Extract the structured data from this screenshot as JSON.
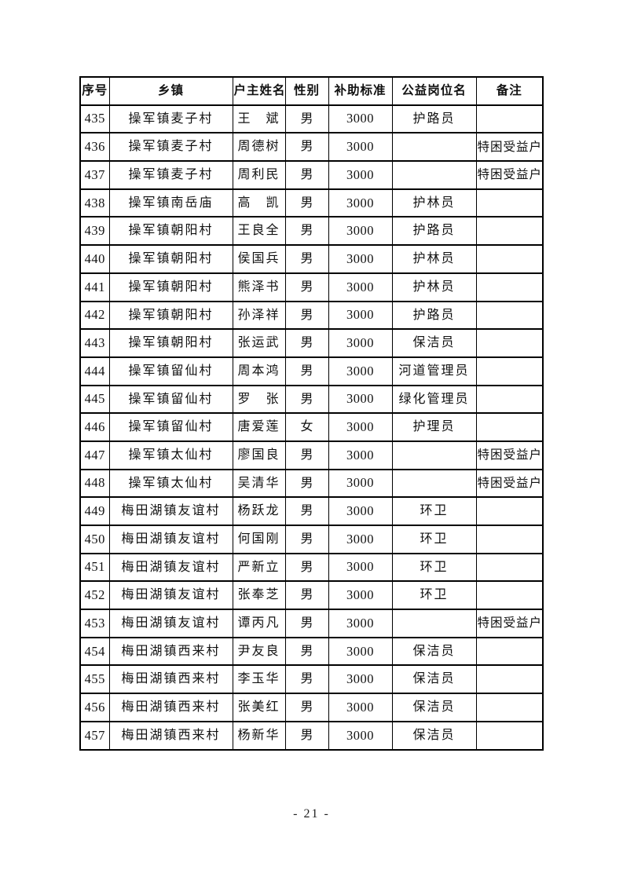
{
  "footer": {
    "page_label": "- 21 -"
  },
  "table": {
    "headers": [
      "序号",
      "乡镇",
      "户主姓名",
      "性别",
      "补助标准",
      "公益岗位名",
      "备注"
    ],
    "rows": [
      {
        "seq": "435",
        "township": "操军镇麦子村",
        "name": "王　斌",
        "gender": "男",
        "amount": "3000",
        "position": "护路员",
        "remark": ""
      },
      {
        "seq": "436",
        "township": "操军镇麦子村",
        "name": "周德树",
        "gender": "男",
        "amount": "3000",
        "position": "",
        "remark": "特困受益户"
      },
      {
        "seq": "437",
        "township": "操军镇麦子村",
        "name": "周利民",
        "gender": "男",
        "amount": "3000",
        "position": "",
        "remark": "特困受益户"
      },
      {
        "seq": "438",
        "township": "操军镇南岳庙",
        "name": "高　凯",
        "gender": "男",
        "amount": "3000",
        "position": "护林员",
        "remark": ""
      },
      {
        "seq": "439",
        "township": "操军镇朝阳村",
        "name": "王良全",
        "gender": "男",
        "amount": "3000",
        "position": "护路员",
        "remark": ""
      },
      {
        "seq": "440",
        "township": "操军镇朝阳村",
        "name": "侯国兵",
        "gender": "男",
        "amount": "3000",
        "position": "护林员",
        "remark": ""
      },
      {
        "seq": "441",
        "township": "操军镇朝阳村",
        "name": "熊泽书",
        "gender": "男",
        "amount": "3000",
        "position": "护林员",
        "remark": ""
      },
      {
        "seq": "442",
        "township": "操军镇朝阳村",
        "name": "孙泽祥",
        "gender": "男",
        "amount": "3000",
        "position": "护路员",
        "remark": ""
      },
      {
        "seq": "443",
        "township": "操军镇朝阳村",
        "name": "张运武",
        "gender": "男",
        "amount": "3000",
        "position": "保洁员",
        "remark": ""
      },
      {
        "seq": "444",
        "township": "操军镇留仙村",
        "name": "周本鸿",
        "gender": "男",
        "amount": "3000",
        "position": "河道管理员",
        "remark": ""
      },
      {
        "seq": "445",
        "township": "操军镇留仙村",
        "name": "罗　张",
        "gender": "男",
        "amount": "3000",
        "position": "绿化管理员",
        "remark": ""
      },
      {
        "seq": "446",
        "township": "操军镇留仙村",
        "name": "唐爱莲",
        "gender": "女",
        "amount": "3000",
        "position": "护理员",
        "remark": ""
      },
      {
        "seq": "447",
        "township": "操军镇太仙村",
        "name": "廖国良",
        "gender": "男",
        "amount": "3000",
        "position": "",
        "remark": "特困受益户"
      },
      {
        "seq": "448",
        "township": "操军镇太仙村",
        "name": "吴清华",
        "gender": "男",
        "amount": "3000",
        "position": "",
        "remark": "特困受益户"
      },
      {
        "seq": "449",
        "township": "梅田湖镇友谊村",
        "name": "杨跃龙",
        "gender": "男",
        "amount": "3000",
        "position": "环卫",
        "remark": ""
      },
      {
        "seq": "450",
        "township": "梅田湖镇友谊村",
        "name": "何国刚",
        "gender": "男",
        "amount": "3000",
        "position": "环卫",
        "remark": ""
      },
      {
        "seq": "451",
        "township": "梅田湖镇友谊村",
        "name": "严新立",
        "gender": "男",
        "amount": "3000",
        "position": "环卫",
        "remark": ""
      },
      {
        "seq": "452",
        "township": "梅田湖镇友谊村",
        "name": "张奉芝",
        "gender": "男",
        "amount": "3000",
        "position": "环卫",
        "remark": ""
      },
      {
        "seq": "453",
        "township": "梅田湖镇友谊村",
        "name": "谭丙凡",
        "gender": "男",
        "amount": "3000",
        "position": "",
        "remark": "特困受益户"
      },
      {
        "seq": "454",
        "township": "梅田湖镇西来村",
        "name": "尹友良",
        "gender": "男",
        "amount": "3000",
        "position": "保洁员",
        "remark": ""
      },
      {
        "seq": "455",
        "township": "梅田湖镇西来村",
        "name": "李玉华",
        "gender": "男",
        "amount": "3000",
        "position": "保洁员",
        "remark": ""
      },
      {
        "seq": "456",
        "township": "梅田湖镇西来村",
        "name": "张美红",
        "gender": "男",
        "amount": "3000",
        "position": "保洁员",
        "remark": ""
      },
      {
        "seq": "457",
        "township": "梅田湖镇西来村",
        "name": "杨新华",
        "gender": "男",
        "amount": "3000",
        "position": "保洁员",
        "remark": ""
      }
    ]
  }
}
